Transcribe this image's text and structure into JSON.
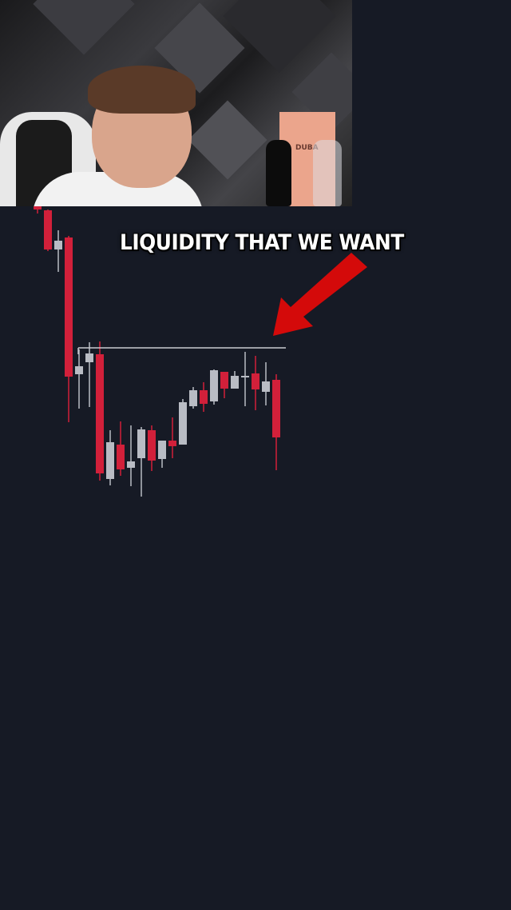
{
  "caption": "LIQUIDITY THAT WE WANT",
  "webcam": {
    "box_logo_text": "DUBA"
  },
  "colors": {
    "background": "#161a25",
    "bearish": "#d2203a",
    "bullish": "#b9bcc4",
    "level_line": "#c8cbd2",
    "arrow": "#d40a0a"
  },
  "icons": {
    "arrow": "red-arrow-down-left"
  },
  "chart_data": {
    "type": "candlestick",
    "title": "",
    "xlabel": "",
    "ylabel": "",
    "axes_visible": false,
    "grid": false,
    "liquidity_level": 265,
    "candles": [
      {
        "o": 442,
        "h": 442,
        "l": 433,
        "c": 438
      },
      {
        "o": 437,
        "h": 438,
        "l": 386,
        "c": 388
      },
      {
        "o": 388,
        "h": 412,
        "l": 360,
        "c": 399
      },
      {
        "o": 403,
        "h": 405,
        "l": 172,
        "c": 229
      },
      {
        "o": 232,
        "h": 263,
        "l": 189,
        "c": 242
      },
      {
        "o": 247,
        "h": 272,
        "l": 191,
        "c": 258
      },
      {
        "o": 257,
        "h": 273,
        "l": 99,
        "c": 108
      },
      {
        "o": 101,
        "h": 162,
        "l": 93,
        "c": 147
      },
      {
        "o": 144,
        "h": 173,
        "l": 105,
        "c": 113
      },
      {
        "o": 115,
        "h": 168,
        "l": 92,
        "c": 123
      },
      {
        "o": 127,
        "h": 166,
        "l": 79,
        "c": 163
      },
      {
        "o": 162,
        "h": 168,
        "l": 111,
        "c": 124
      },
      {
        "o": 126,
        "h": 149,
        "l": 115,
        "c": 149
      },
      {
        "o": 149,
        "h": 178,
        "l": 127,
        "c": 142
      },
      {
        "o": 144,
        "h": 201,
        "l": 144,
        "c": 197
      },
      {
        "o": 192,
        "h": 216,
        "l": 189,
        "c": 212
      },
      {
        "o": 212,
        "h": 222,
        "l": 185,
        "c": 195
      },
      {
        "o": 198,
        "h": 238,
        "l": 194,
        "c": 237
      },
      {
        "o": 235,
        "h": 235,
        "l": 202,
        "c": 214
      },
      {
        "o": 214,
        "h": 236,
        "l": 214,
        "c": 230
      },
      {
        "o": 228,
        "h": 260,
        "l": 192,
        "c": 230
      },
      {
        "o": 233,
        "h": 255,
        "l": 187,
        "c": 213
      },
      {
        "o": 210,
        "h": 247,
        "l": 193,
        "c": 223
      },
      {
        "o": 225,
        "h": 232,
        "l": 112,
        "c": 153
      }
    ]
  }
}
